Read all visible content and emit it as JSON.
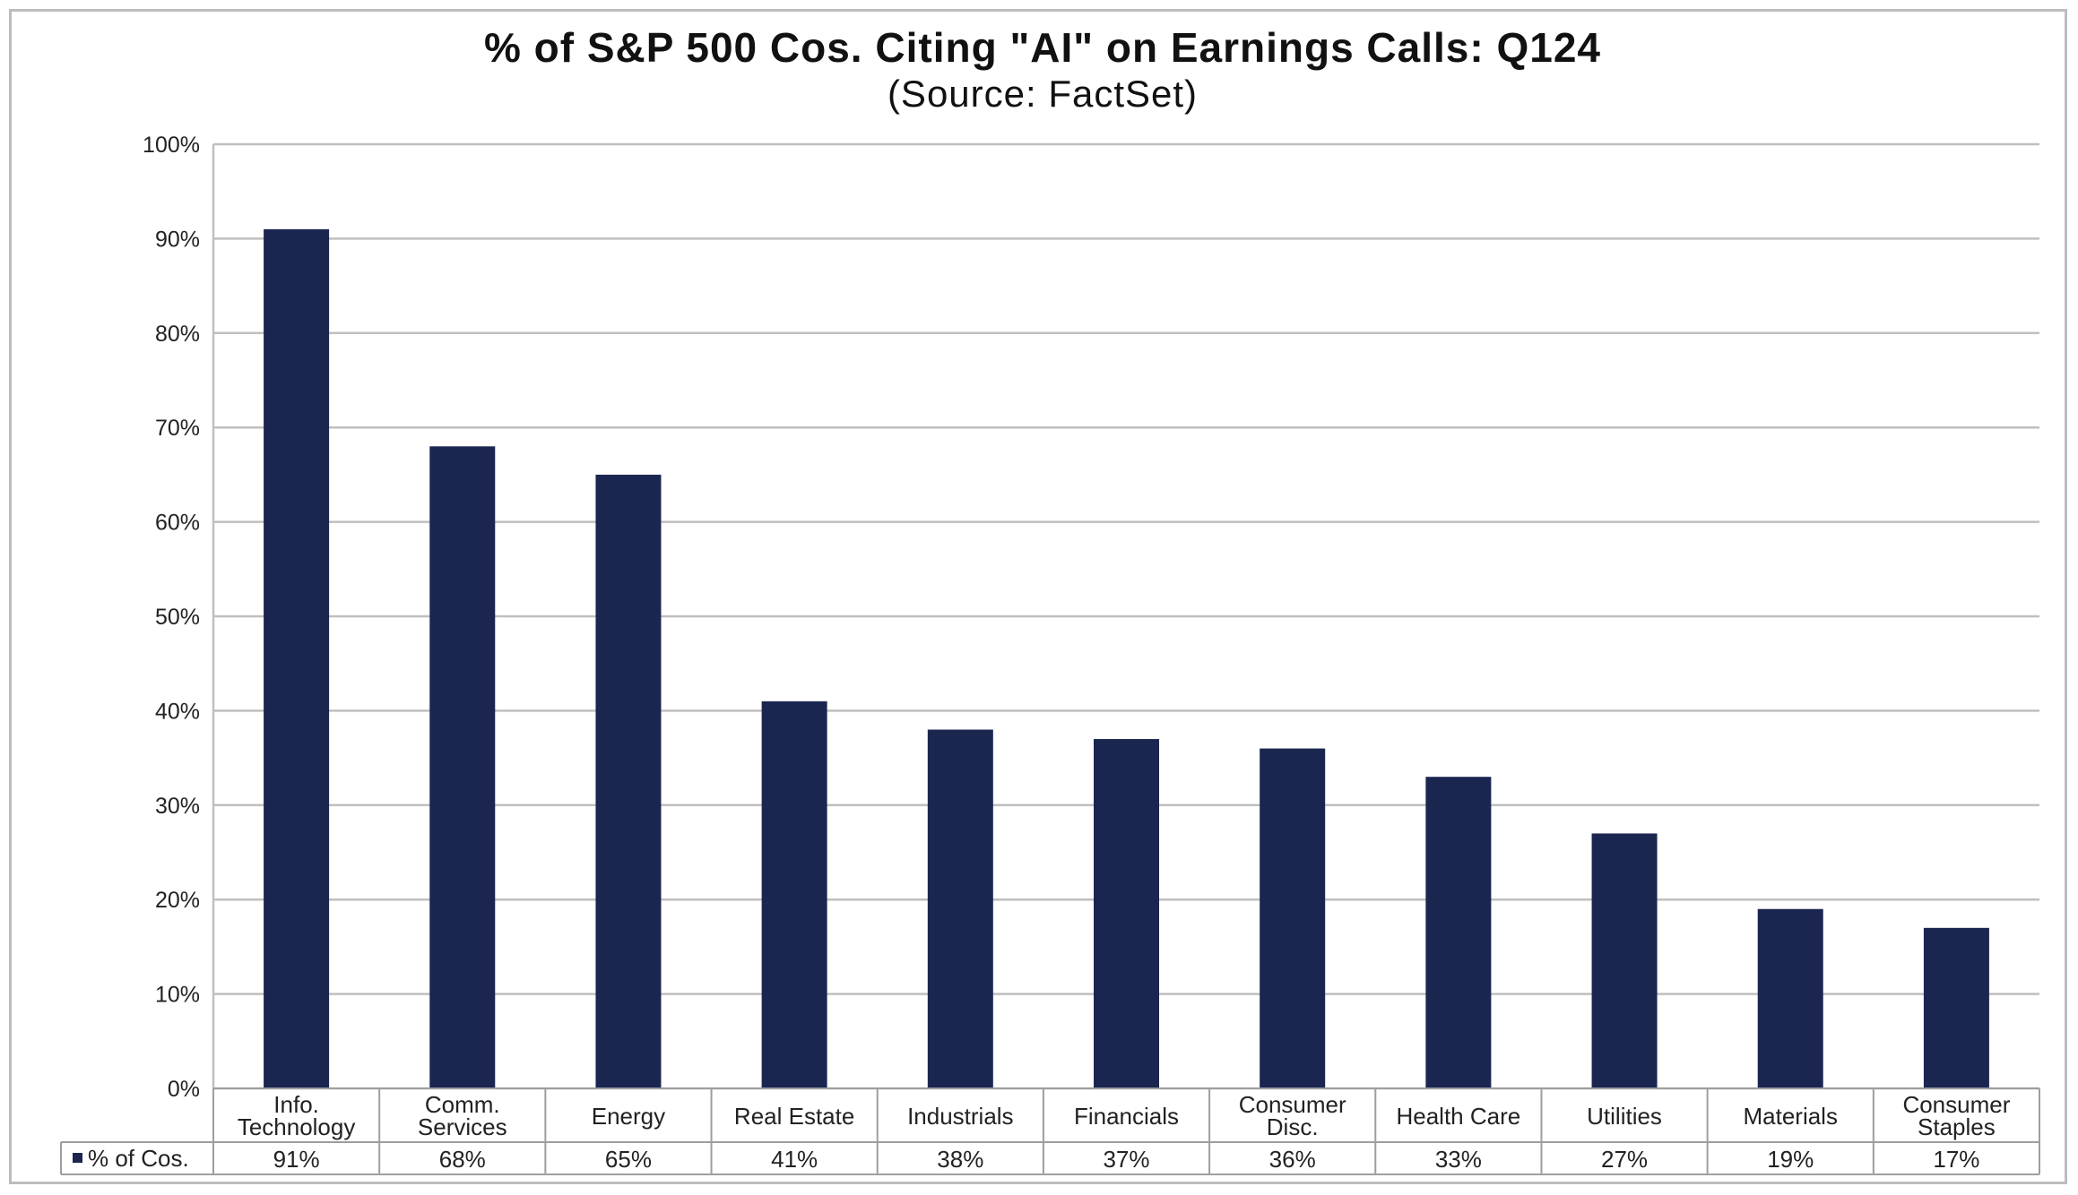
{
  "chart_data": {
    "type": "bar",
    "title": "% of S&P 500 Cos. Citing \"AI\" on Earnings Calls: Q124",
    "subtitle": "(Source: FactSet)",
    "xlabel": "",
    "ylabel": "",
    "ylim": [
      0,
      100
    ],
    "y_ticks": [
      "0%",
      "10%",
      "20%",
      "30%",
      "40%",
      "50%",
      "60%",
      "70%",
      "80%",
      "90%",
      "100%"
    ],
    "grid": true,
    "bar_color": "#1b2650",
    "categories": [
      [
        "Info.",
        "Technology"
      ],
      [
        "Comm.",
        "Services"
      ],
      [
        "Energy"
      ],
      [
        "Real Estate"
      ],
      [
        "Industrials"
      ],
      [
        "Financials"
      ],
      [
        "Consumer",
        "Disc."
      ],
      [
        "Health Care"
      ],
      [
        "Utilities"
      ],
      [
        "Materials"
      ],
      [
        "Consumer",
        "Staples"
      ]
    ],
    "series": [
      {
        "name": "% of Cos.",
        "values": [
          91,
          68,
          65,
          41,
          38,
          37,
          36,
          33,
          27,
          19,
          17
        ],
        "value_labels": [
          "91%",
          "68%",
          "65%",
          "41%",
          "38%",
          "37%",
          "36%",
          "33%",
          "27%",
          "19%",
          "17%"
        ]
      }
    ],
    "data_table": true
  }
}
